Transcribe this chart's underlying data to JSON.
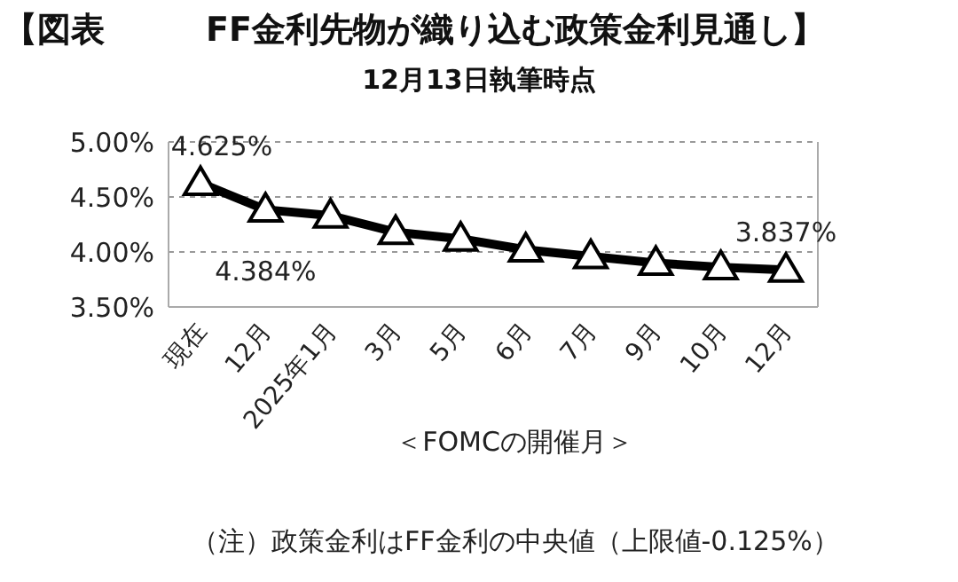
{
  "chart_data": {
    "type": "line",
    "title": "【図表　　　FF金利先物が織り込む政策金利見通し】",
    "subtitle": "12月13日執筆時点",
    "xlabel": "＜FOMCの開催月＞",
    "categories": [
      "現在",
      "12月",
      "2025年1月",
      "3月",
      "5月",
      "6月",
      "7月",
      "9月",
      "10月",
      "12月"
    ],
    "series": [
      {
        "color": "#000000",
        "values": [
          4.625,
          4.384,
          4.33,
          4.18,
          4.12,
          4.02,
          3.96,
          3.9,
          3.86,
          3.837
        ],
        "value_labels": [
          "4.625%",
          "4.384%",
          null,
          null,
          null,
          null,
          null,
          null,
          null,
          "3.837%"
        ]
      }
    ],
    "ylim": [
      3.5,
      5
    ],
    "yticks": [
      {
        "value": 3.5,
        "label": "3.50%"
      },
      {
        "value": 4,
        "label": "4.00%"
      },
      {
        "value": 4.5,
        "label": "4.50%"
      },
      {
        "value": 5,
        "label": "5.00%"
      }
    ],
    "grid": "y",
    "marker": "triangle",
    "line_style": "solid",
    "annotations": [
      "（注）政策金利はFF金利の中央値（上限値-0.125%）"
    ]
  }
}
